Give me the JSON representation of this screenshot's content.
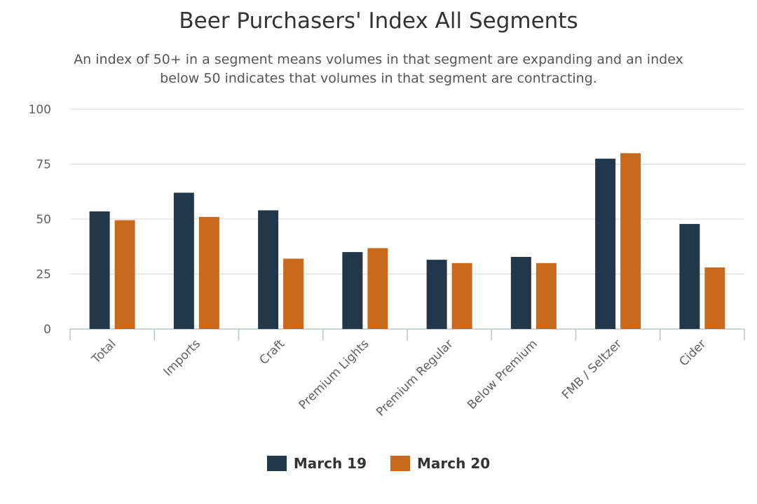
{
  "chart_data": {
    "type": "bar",
    "title": "Beer Purchasers' Index All Segments",
    "subtitle": "An index of 50+ in a segment means volumes in that segment are expanding and an index below 50 indicates that volumes in that segment are contracting.",
    "categories": [
      "Total",
      "Imports",
      "Craft",
      "Premium Lights",
      "Premium Regular",
      "Below Premium",
      "FMB / Seltzer",
      "Cider"
    ],
    "series": [
      {
        "name": "March 19",
        "color": "#22384a",
        "values": [
          53.5,
          62,
          54,
          35,
          31.5,
          32.8,
          77.5,
          47.8
        ]
      },
      {
        "name": "March 20",
        "color": "#c9691c",
        "values": [
          49.5,
          51,
          32,
          36.8,
          30,
          30,
          80,
          28
        ]
      }
    ],
    "ylim": [
      0,
      100
    ],
    "yticks": [
      0,
      25,
      50,
      75,
      100
    ],
    "xlabel": "",
    "ylabel": "",
    "grid": true,
    "legend_position": "bottom-center"
  }
}
